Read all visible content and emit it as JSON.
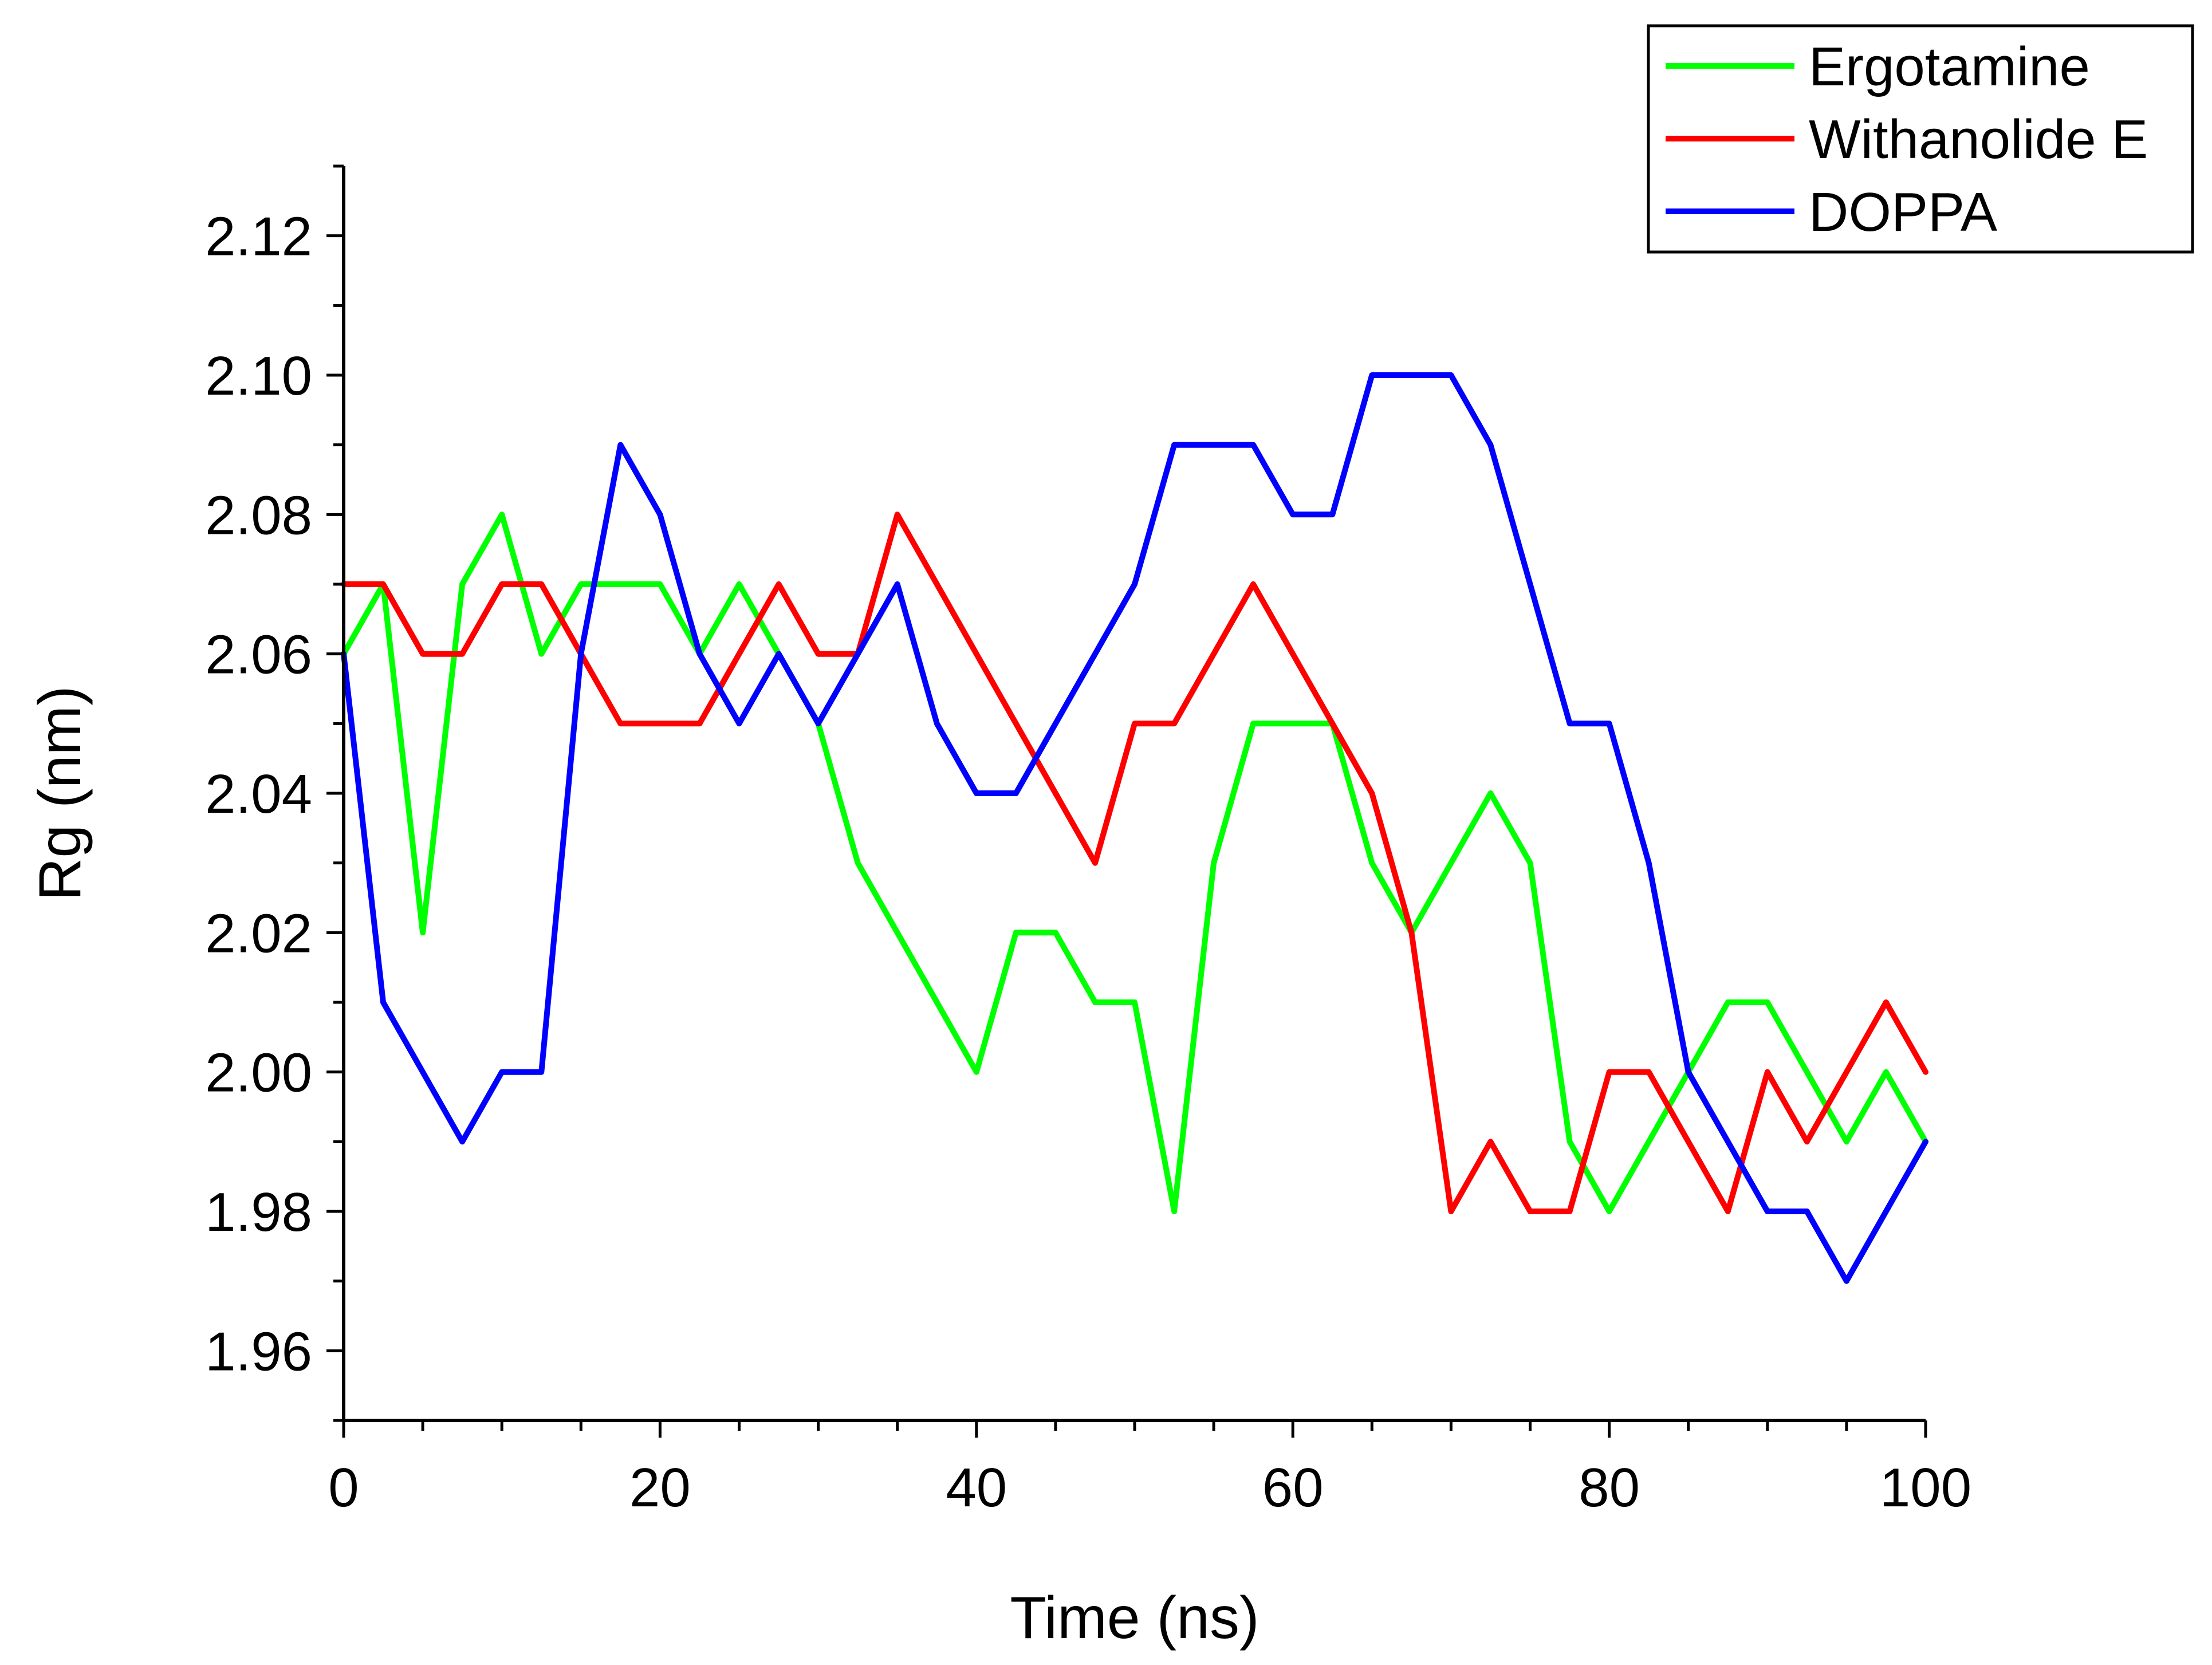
{
  "chart_data": {
    "type": "line",
    "title": "",
    "xlabel": "Time (ns)",
    "ylabel": "Rg (nm)",
    "xlim": [
      0,
      100
    ],
    "ylim": [
      1.95,
      2.13
    ],
    "x_ticks": [
      0,
      20,
      40,
      60,
      80,
      100
    ],
    "x_tick_labels": [
      "0",
      "20",
      "40",
      "60",
      "80",
      "100"
    ],
    "y_ticks": [
      1.96,
      1.98,
      2.0,
      2.02,
      2.04,
      2.06,
      2.08,
      2.1,
      2.12
    ],
    "y_tick_labels": [
      "1.96",
      "1.98",
      "2.00",
      "2.02",
      "2.04",
      "2.06",
      "2.08",
      "2.10",
      "2.12"
    ],
    "grid": false,
    "legend_position": "top-right",
    "x": [
      0,
      2.5,
      5,
      7.5,
      10,
      12.5,
      15,
      17.5,
      20,
      22.5,
      25,
      27.5,
      30,
      32.5,
      35,
      37.5,
      40,
      42.5,
      45,
      47.5,
      50,
      52.5,
      55,
      57.5,
      60,
      62.5,
      65,
      67.5,
      70,
      72.5,
      75,
      77.5,
      80,
      82.5,
      85,
      87.5,
      90,
      92.5,
      95,
      97.5,
      100
    ],
    "series": [
      {
        "name": "Ergotamine",
        "color": "#00ff00",
        "values": [
          2.06,
          2.07,
          2.02,
          2.07,
          2.08,
          2.06,
          2.07,
          2.07,
          2.07,
          2.06,
          2.07,
          2.06,
          2.05,
          2.03,
          2.02,
          2.01,
          2.0,
          2.02,
          2.02,
          2.01,
          2.01,
          1.98,
          2.03,
          2.05,
          2.05,
          2.05,
          2.03,
          2.02,
          2.03,
          2.04,
          2.03,
          1.99,
          1.98,
          1.99,
          2.0,
          2.01,
          2.01,
          2.0,
          1.99,
          2.0,
          1.99
        ]
      },
      {
        "name": "Withanolide E",
        "color": "#ff0000",
        "values": [
          2.07,
          2.07,
          2.06,
          2.06,
          2.07,
          2.07,
          2.06,
          2.05,
          2.05,
          2.05,
          2.06,
          2.07,
          2.06,
          2.06,
          2.08,
          2.07,
          2.06,
          2.05,
          2.04,
          2.03,
          2.05,
          2.05,
          2.06,
          2.07,
          2.06,
          2.05,
          2.04,
          2.02,
          1.98,
          1.99,
          1.98,
          1.98,
          2.0,
          2.0,
          1.99,
          1.98,
          2.0,
          1.99,
          2.0,
          2.01,
          2.0
        ]
      },
      {
        "name": "DOPPA",
        "color": "#0000ff",
        "values": [
          2.06,
          2.01,
          2.0,
          1.99,
          2.0,
          2.0,
          2.06,
          2.09,
          2.08,
          2.06,
          2.05,
          2.06,
          2.05,
          2.06,
          2.07,
          2.05,
          2.04,
          2.04,
          2.05,
          2.06,
          2.07,
          2.09,
          2.09,
          2.09,
          2.08,
          2.08,
          2.1,
          2.1,
          2.1,
          2.09,
          2.07,
          2.05,
          2.05,
          2.03,
          2.0,
          1.99,
          1.98,
          1.98,
          1.97,
          1.98,
          1.99
        ]
      }
    ]
  }
}
